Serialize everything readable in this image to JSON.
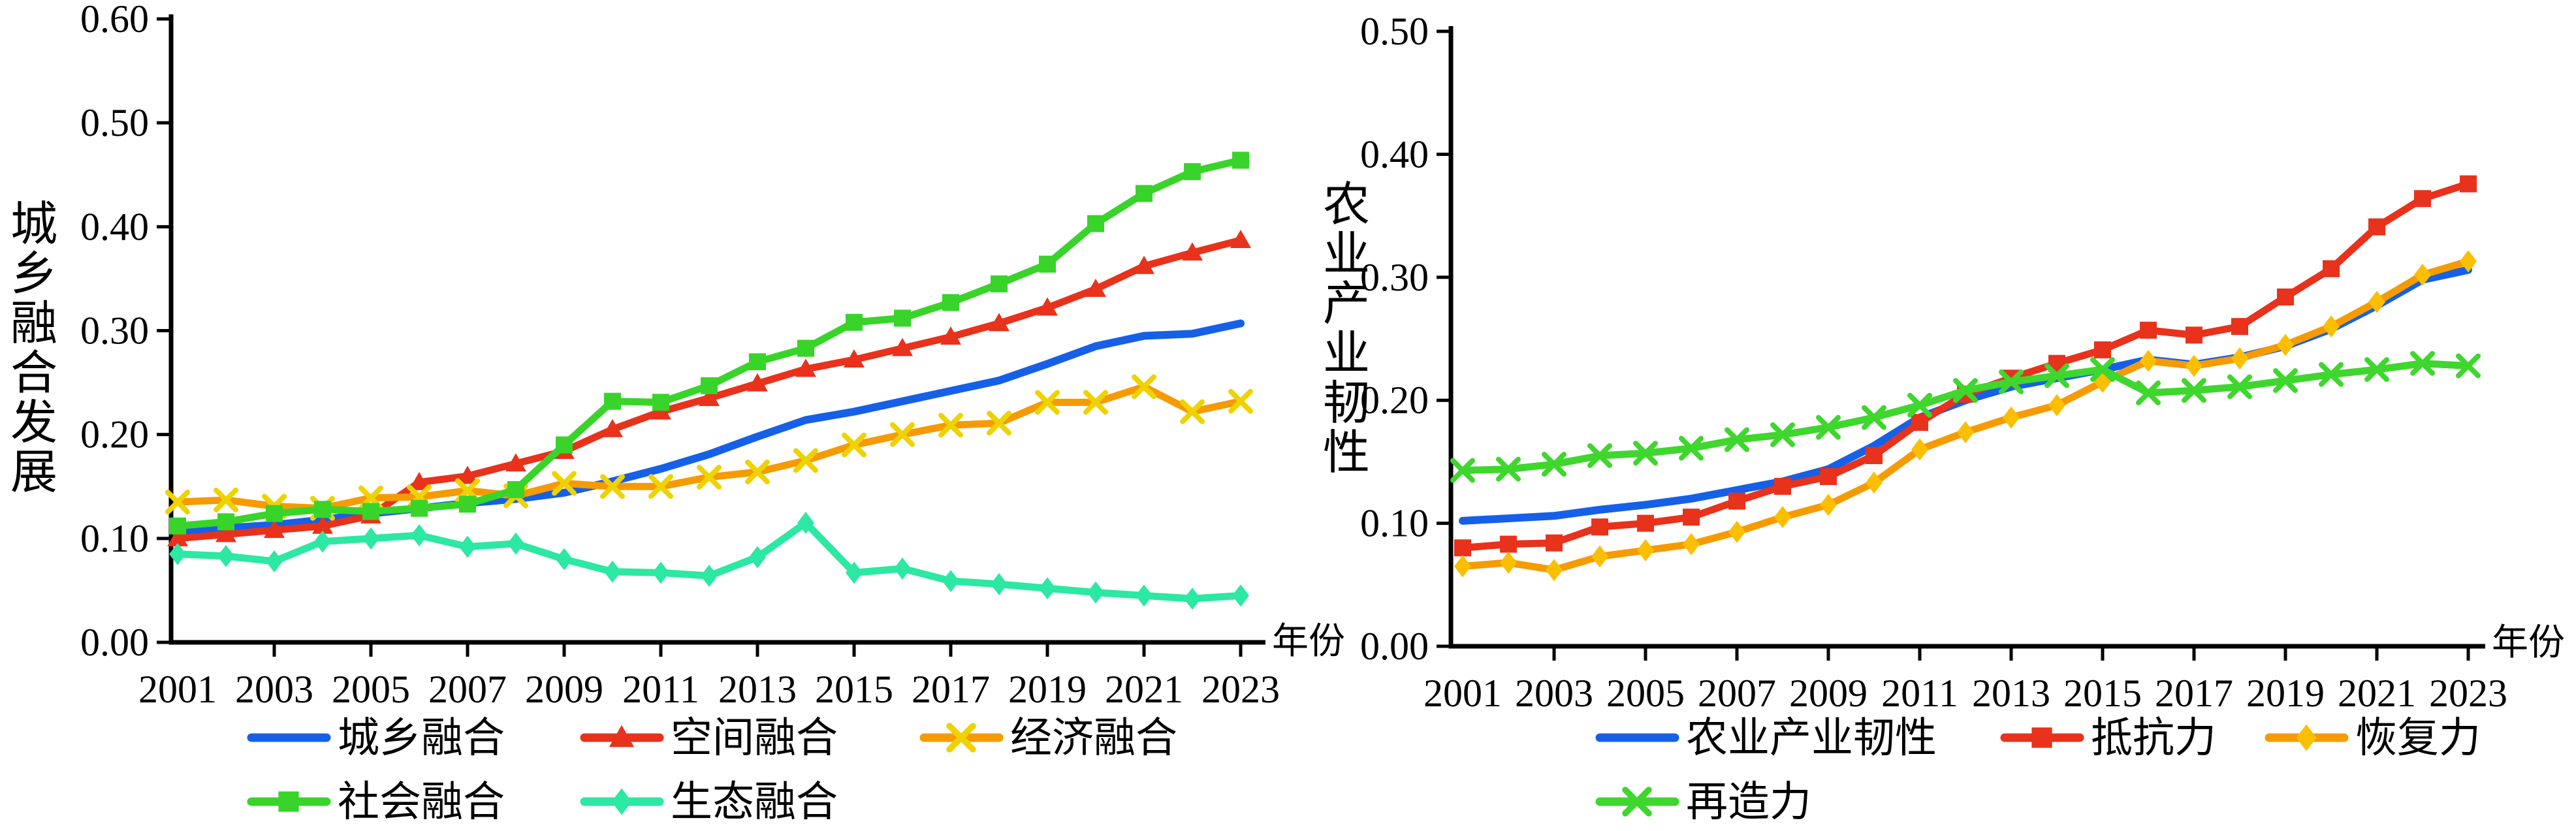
{
  "chart_data": [
    {
      "type": "line",
      "title": "",
      "ylabel": "城乡融合发展",
      "xlabel": "年份",
      "ylim": [
        0.0,
        0.6
      ],
      "ytick_interval": 0.1,
      "ytick_labels": [
        "0.00",
        "0.10",
        "0.20",
        "0.30",
        "0.40",
        "0.50",
        "0.60"
      ],
      "x": [
        2001,
        2002,
        2003,
        2004,
        2005,
        2006,
        2007,
        2008,
        2009,
        2010,
        2011,
        2012,
        2013,
        2014,
        2015,
        2016,
        2017,
        2018,
        2019,
        2020,
        2021,
        2022,
        2023
      ],
      "xtick_labels": [
        "2001",
        "2003",
        "2005",
        "2007",
        "2009",
        "2011",
        "2013",
        "2015",
        "2017",
        "2019",
        "2021",
        "2023"
      ],
      "grid": false,
      "legend_position": "bottom",
      "series": [
        {
          "name": "城乡融合",
          "color": "#1660e8",
          "marker": "none",
          "marker_color": "#1660e8",
          "values": [
            0.107,
            0.11,
            0.113,
            0.118,
            0.124,
            0.129,
            0.134,
            0.138,
            0.144,
            0.155,
            0.167,
            0.181,
            0.198,
            0.214,
            0.222,
            0.232,
            0.242,
            0.252,
            0.268,
            0.285,
            0.295,
            0.297,
            0.307
          ]
        },
        {
          "name": "空间融合",
          "color": "#e8321c",
          "marker": "triangle",
          "marker_color": "#e8321c",
          "values": [
            0.1,
            0.104,
            0.108,
            0.112,
            0.122,
            0.154,
            0.16,
            0.172,
            0.184,
            0.205,
            0.222,
            0.235,
            0.249,
            0.263,
            0.272,
            0.283,
            0.294,
            0.307,
            0.322,
            0.34,
            0.362,
            0.375,
            0.387
          ]
        },
        {
          "name": "经济融合",
          "color": "#f59b00",
          "marker": "x",
          "marker_color": "#eed202",
          "values": [
            0.135,
            0.137,
            0.131,
            0.129,
            0.139,
            0.14,
            0.146,
            0.141,
            0.153,
            0.15,
            0.15,
            0.159,
            0.164,
            0.175,
            0.19,
            0.2,
            0.209,
            0.211,
            0.231,
            0.231,
            0.246,
            0.222,
            0.232
          ]
        },
        {
          "name": "社会融合",
          "color": "#38d42a",
          "marker": "square",
          "marker_color": "#38d42a",
          "values": [
            0.112,
            0.116,
            0.124,
            0.128,
            0.126,
            0.129,
            0.133,
            0.147,
            0.19,
            0.232,
            0.231,
            0.247,
            0.27,
            0.283,
            0.308,
            0.312,
            0.327,
            0.345,
            0.364,
            0.403,
            0.432,
            0.453,
            0.464
          ]
        },
        {
          "name": "生态融合",
          "color": "#2ce8a2",
          "marker": "diamond",
          "marker_color": "#2ce8a2",
          "values": [
            0.085,
            0.083,
            0.078,
            0.097,
            0.1,
            0.103,
            0.092,
            0.095,
            0.08,
            0.068,
            0.067,
            0.064,
            0.082,
            0.115,
            0.067,
            0.071,
            0.059,
            0.056,
            0.052,
            0.048,
            0.045,
            0.042,
            0.045
          ]
        }
      ],
      "legend_rows": [
        [
          "城乡融合",
          "空间融合",
          "经济融合"
        ],
        [
          "社会融合",
          "生态融合"
        ]
      ]
    },
    {
      "type": "line",
      "title": "",
      "ylabel": "农业产业韧性",
      "xlabel": "年份",
      "ylim": [
        0.0,
        0.5
      ],
      "ytick_interval": 0.1,
      "ytick_labels": [
        "0.00",
        "0.10",
        "0.20",
        "0.30",
        "0.40",
        "0.50"
      ],
      "x": [
        2001,
        2002,
        2003,
        2004,
        2005,
        2006,
        2007,
        2008,
        2009,
        2010,
        2011,
        2012,
        2013,
        2014,
        2015,
        2016,
        2017,
        2018,
        2019,
        2020,
        2021,
        2022,
        2023
      ],
      "xtick_labels": [
        "2001",
        "2003",
        "2005",
        "2007",
        "2009",
        "2011",
        "2013",
        "2015",
        "2017",
        "2019",
        "2021",
        "2023"
      ],
      "grid": false,
      "legend_position": "bottom",
      "series": [
        {
          "name": "农业产业韧性",
          "color": "#1660e8",
          "marker": "none",
          "marker_color": "#1660e8",
          "values": [
            0.102,
            0.104,
            0.106,
            0.111,
            0.115,
            0.12,
            0.127,
            0.134,
            0.144,
            0.163,
            0.186,
            0.2,
            0.211,
            0.218,
            0.225,
            0.233,
            0.229,
            0.235,
            0.244,
            0.258,
            0.277,
            0.298,
            0.306
          ]
        },
        {
          "name": "抵抗力",
          "color": "#e8321c",
          "marker": "square",
          "marker_color": "#e8321c",
          "values": [
            0.08,
            0.083,
            0.084,
            0.097,
            0.1,
            0.105,
            0.118,
            0.13,
            0.138,
            0.155,
            0.182,
            0.205,
            0.218,
            0.23,
            0.241,
            0.257,
            0.253,
            0.26,
            0.284,
            0.307,
            0.341,
            0.364,
            0.376
          ]
        },
        {
          "name": "恢复力",
          "color": "#f59b00",
          "marker": "diamond",
          "marker_color": "#fbbf00",
          "values": [
            0.065,
            0.068,
            0.062,
            0.073,
            0.078,
            0.083,
            0.093,
            0.105,
            0.115,
            0.133,
            0.16,
            0.174,
            0.186,
            0.196,
            0.215,
            0.232,
            0.228,
            0.234,
            0.245,
            0.26,
            0.28,
            0.302,
            0.313
          ]
        },
        {
          "name": "再造力",
          "color": "#3fd62e",
          "marker": "x",
          "marker_color": "#3fd62e",
          "values": [
            0.143,
            0.144,
            0.148,
            0.155,
            0.157,
            0.161,
            0.168,
            0.172,
            0.178,
            0.186,
            0.196,
            0.208,
            0.215,
            0.22,
            0.225,
            0.206,
            0.208,
            0.211,
            0.216,
            0.221,
            0.225,
            0.23,
            0.228
          ]
        }
      ],
      "legend_rows": [
        [
          "农业产业韧性",
          "抵抗力",
          "恢复力"
        ],
        [
          "再造力"
        ]
      ]
    }
  ]
}
